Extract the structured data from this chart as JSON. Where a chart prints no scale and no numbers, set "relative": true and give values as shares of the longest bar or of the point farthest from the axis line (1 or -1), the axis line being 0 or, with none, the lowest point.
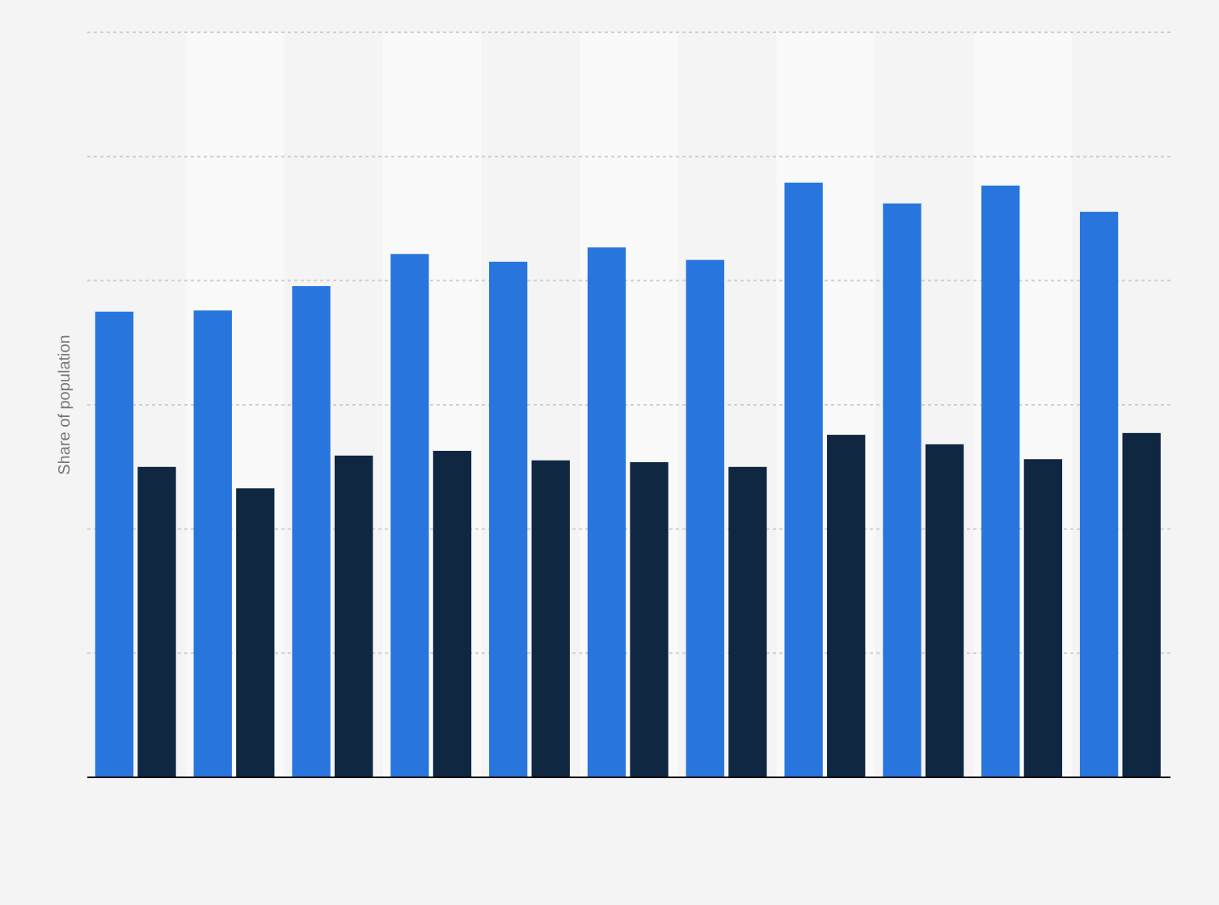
{
  "chart_data": {
    "type": "bar",
    "relative": true,
    "ylabel": "Share of population",
    "categories": [
      null,
      null,
      null,
      null,
      null,
      null,
      null,
      null,
      null,
      null,
      null
    ],
    "grid": "y",
    "series": [
      {
        "color": "#2876dd",
        "values": [
          0.783,
          0.785,
          0.826,
          0.88,
          0.867,
          0.891,
          0.87,
          1,
          0.965,
          0.995,
          0.951
        ]
      },
      {
        "color": "#0f2741",
        "values": [
          0.522,
          0.486,
          0.541,
          0.549,
          0.533,
          0.53,
          0.522,
          0.576,
          0.56,
          0.535,
          0.579
        ]
      }
    ]
  }
}
